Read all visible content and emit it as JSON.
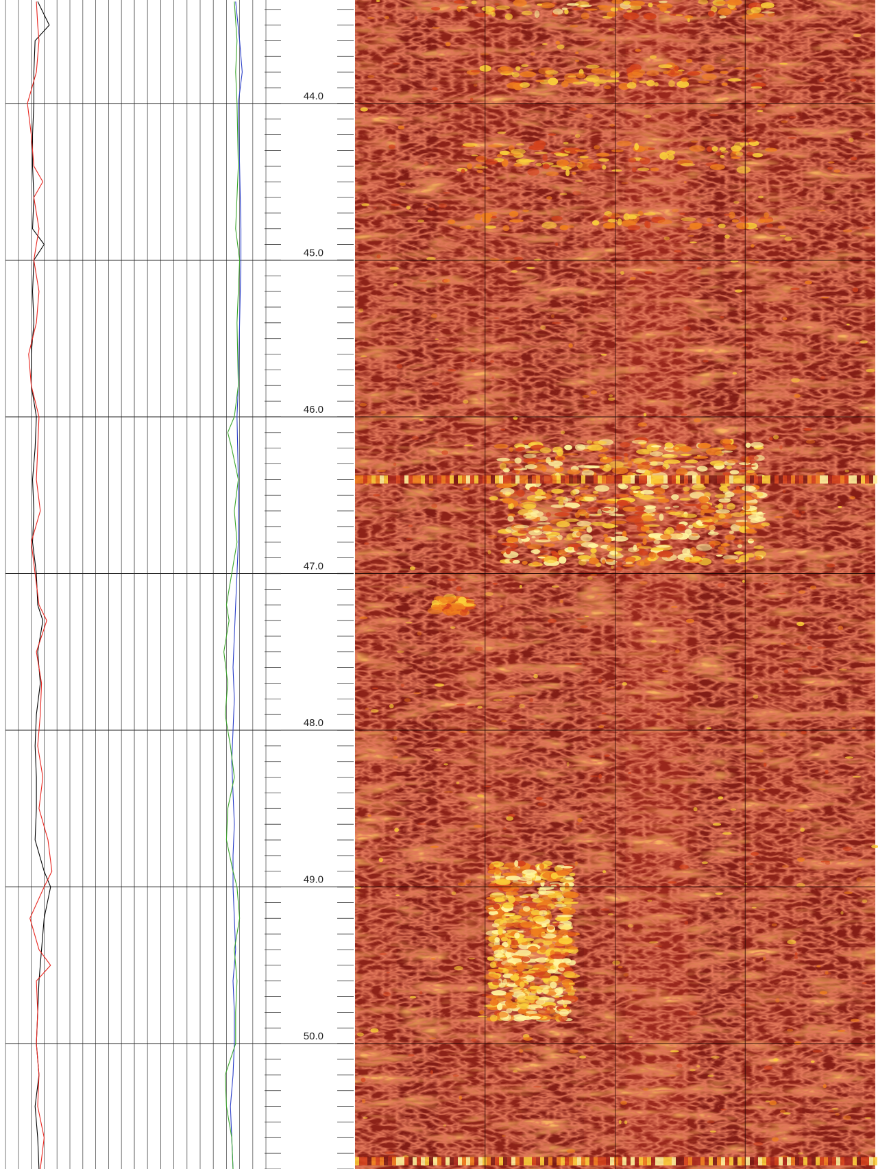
{
  "chart_data": {
    "type": "line",
    "title": "",
    "xlabel": "",
    "ylabel": "",
    "depth_range": [
      43.34,
      50.8
    ],
    "depth_ticks": [
      {
        "value": 44.0,
        "label": "44.0"
      },
      {
        "value": 45.0,
        "label": "45.0"
      },
      {
        "value": 46.0,
        "label": "46.0"
      },
      {
        "value": 47.0,
        "label": "47.0"
      },
      {
        "value": 48.0,
        "label": "48.0"
      },
      {
        "value": 49.0,
        "label": "49.0"
      },
      {
        "value": 50.0,
        "label": "50.0"
      }
    ],
    "minor_tick_step": 0.1,
    "track1": {
      "scale": [
        0,
        10
      ],
      "grid_divisions": 10,
      "series": [
        {
          "color": "#000000",
          "depth": [
            43.35,
            43.5,
            43.6,
            43.8,
            44.0,
            44.2,
            44.4,
            44.6,
            44.8,
            44.9,
            45.0,
            45.2,
            45.4,
            45.6,
            45.8,
            46.0,
            46.2,
            46.4,
            46.6,
            46.8,
            47.0,
            47.2,
            47.3,
            47.5,
            47.7,
            47.9,
            48.1,
            48.3,
            48.5,
            48.7,
            48.9,
            49.0,
            49.2,
            49.4,
            49.6,
            49.8,
            50.0,
            50.2,
            50.4,
            50.6,
            50.8
          ],
          "values": [
            2.5,
            3.4,
            2.3,
            2.2,
            2.2,
            2.1,
            2.1,
            2.2,
            2.1,
            3.0,
            2.2,
            2.1,
            2.2,
            2.0,
            2.0,
            2.4,
            2.3,
            2.1,
            2.2,
            2.1,
            2.4,
            2.5,
            2.9,
            2.5,
            2.7,
            2.4,
            2.3,
            2.4,
            2.4,
            2.3,
            3.0,
            3.5,
            3.0,
            2.8,
            2.6,
            2.5,
            2.4,
            2.6,
            2.3,
            2.5,
            2.6
          ]
        },
        {
          "color": "#e8231c",
          "depth": [
            43.35,
            43.5,
            43.6,
            43.8,
            44.0,
            44.2,
            44.4,
            44.5,
            44.6,
            44.8,
            44.9,
            45.0,
            45.2,
            45.4,
            45.6,
            45.8,
            46.0,
            46.2,
            46.4,
            46.6,
            46.8,
            47.0,
            47.2,
            47.3,
            47.5,
            47.7,
            47.9,
            48.1,
            48.3,
            48.5,
            48.7,
            48.9,
            49.0,
            49.2,
            49.4,
            49.5,
            49.6,
            49.8,
            50.0,
            50.2,
            50.4,
            50.6,
            50.8
          ],
          "values": [
            2.4,
            2.5,
            2.6,
            2.4,
            1.7,
            2.0,
            2.2,
            2.9,
            2.2,
            2.6,
            2.4,
            2.2,
            2.6,
            2.4,
            1.8,
            2.0,
            2.6,
            2.5,
            2.4,
            2.7,
            2.0,
            2.3,
            2.6,
            3.2,
            2.4,
            2.8,
            2.7,
            2.5,
            2.9,
            2.6,
            3.3,
            3.6,
            3.0,
            1.9,
            2.6,
            3.5,
            2.4,
            2.5,
            2.4,
            2.6,
            2.5,
            3.0,
            2.7
          ]
        }
      ]
    },
    "track2": {
      "scale": [
        0,
        10
      ],
      "grid_divisions": 10,
      "series": [
        {
          "color": "#2b3fc8",
          "depth": [
            43.35,
            43.6,
            43.8,
            44.0,
            44.4,
            44.8,
            45.0,
            45.4,
            45.8,
            46.0,
            46.4,
            46.8,
            47.0,
            47.2,
            47.4,
            47.6,
            47.8,
            48.0,
            48.2,
            48.4,
            48.6,
            48.8,
            49.0,
            49.2,
            49.4,
            49.6,
            49.8,
            50.0,
            50.2,
            50.4,
            50.6,
            50.8
          ],
          "values": [
            7.7,
            8.0,
            8.2,
            7.9,
            8.0,
            8.1,
            8.1,
            8.0,
            7.9,
            7.8,
            7.9,
            7.9,
            7.8,
            7.7,
            7.6,
            7.5,
            7.6,
            7.5,
            7.4,
            7.5,
            7.6,
            7.5,
            7.5,
            7.6,
            7.7,
            7.5,
            7.6,
            7.6,
            7.5,
            7.3,
            7.4,
            7.5
          ]
        },
        {
          "color": "#3aa62a",
          "depth": [
            43.35,
            43.6,
            43.8,
            44.0,
            44.4,
            44.8,
            45.0,
            45.4,
            45.8,
            46.0,
            46.1,
            46.2,
            46.4,
            46.6,
            46.8,
            47.0,
            47.2,
            47.3,
            47.5,
            47.7,
            47.9,
            48.1,
            48.3,
            48.5,
            48.7,
            48.9,
            49.0,
            49.2,
            49.4,
            49.6,
            49.8,
            50.0,
            50.2,
            50.4,
            50.6,
            50.8
          ],
          "values": [
            7.6,
            7.8,
            7.7,
            7.8,
            7.9,
            7.7,
            8.0,
            7.8,
            7.9,
            7.6,
            7.1,
            7.4,
            7.9,
            7.6,
            7.8,
            7.4,
            7.0,
            7.2,
            6.8,
            7.1,
            6.9,
            7.3,
            7.6,
            7.1,
            7.0,
            7.5,
            7.8,
            8.0,
            7.6,
            7.8,
            7.7,
            7.7,
            6.9,
            7.0,
            7.4,
            7.5
          ]
        }
      ]
    },
    "image_track": {
      "colormap": [
        "#7a1a14",
        "#a8281c",
        "#d4421c",
        "#f07f1e",
        "#fbd03a",
        "#fff7a0"
      ],
      "background": "#8d2218",
      "bright_zones": [
        {
          "depth_top": 43.35,
          "depth_bottom": 43.45,
          "intensity": 0.7
        },
        {
          "depth_top": 43.75,
          "depth_bottom": 43.9,
          "intensity": 0.55
        },
        {
          "depth_top": 44.25,
          "depth_bottom": 44.45,
          "intensity": 0.6
        },
        {
          "depth_top": 44.7,
          "depth_bottom": 44.8,
          "intensity": 0.5
        },
        {
          "depth_top": 46.15,
          "depth_bottom": 46.95,
          "intensity": 1.0
        },
        {
          "depth_top": 47.15,
          "depth_bottom": 47.25,
          "intensity": 0.55
        },
        {
          "depth_top": 48.85,
          "depth_bottom": 49.85,
          "intensity": 0.85
        }
      ]
    }
  }
}
